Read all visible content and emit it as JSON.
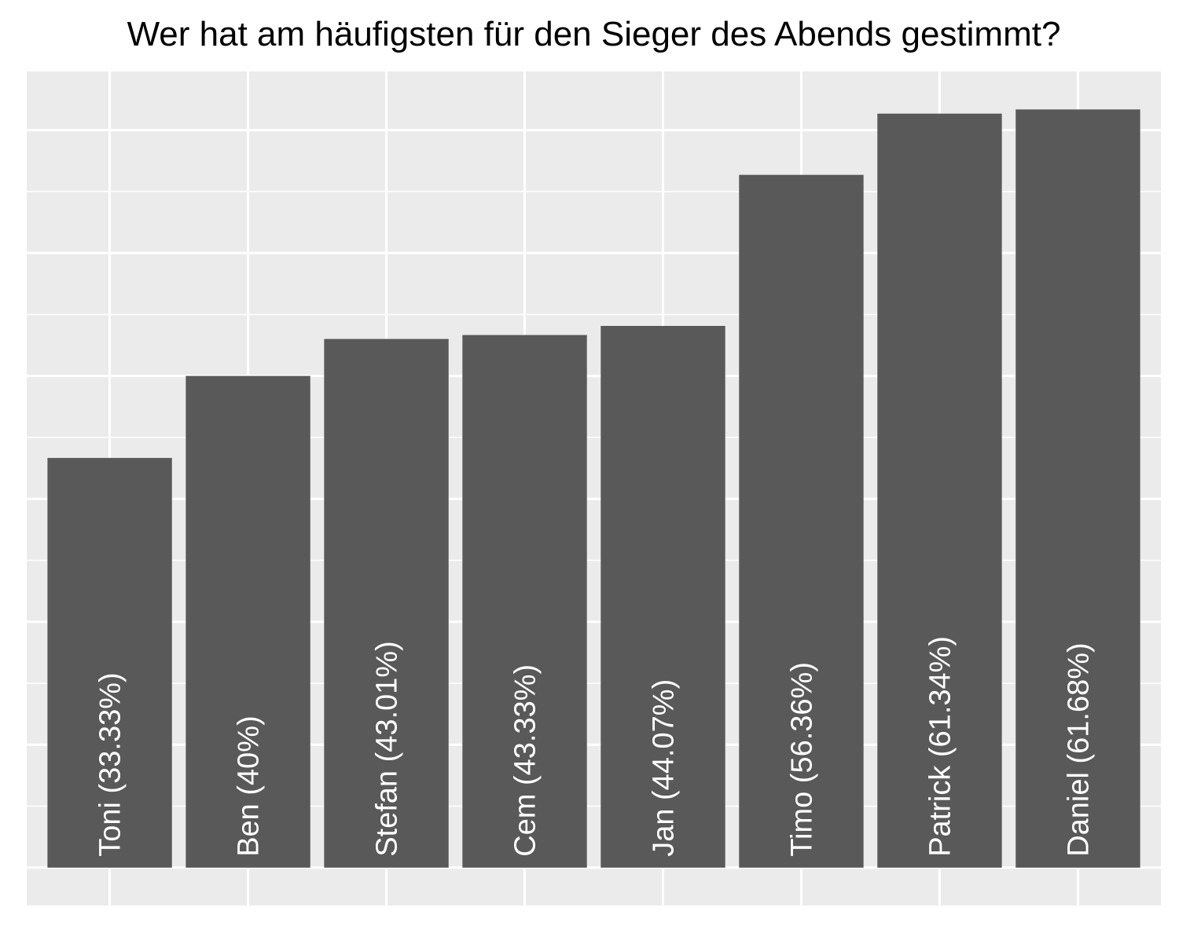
{
  "chart_data": {
    "type": "bar",
    "title": "Wer hat am häufigsten für den Sieger des Abends gestimmt?",
    "xlabel": "",
    "ylabel": "",
    "categories": [
      "Toni",
      "Ben",
      "Stefan",
      "Cem",
      "Jan",
      "Timo",
      "Patrick",
      "Daniel"
    ],
    "values": [
      33.33,
      40,
      43.01,
      43.33,
      44.07,
      56.36,
      61.34,
      61.68
    ],
    "bar_labels": [
      "Toni (33.33%)",
      "Ben (40%)",
      "Stefan (43.01%)",
      "Cem (43.33%)",
      "Jan (44.07%)",
      "Timo (56.36%)",
      "Patrick (61.34%)",
      "Daniel (61.68%)"
    ],
    "ylim": [
      -3.08,
      64.77
    ],
    "grid": true,
    "legend": "none",
    "colors": {
      "panel_background": "#EBEBEB",
      "grid_line": "#FFFFFF",
      "bar_fill": "#595959",
      "label_text": "#FFFFFF",
      "title_text": "#000000"
    }
  }
}
